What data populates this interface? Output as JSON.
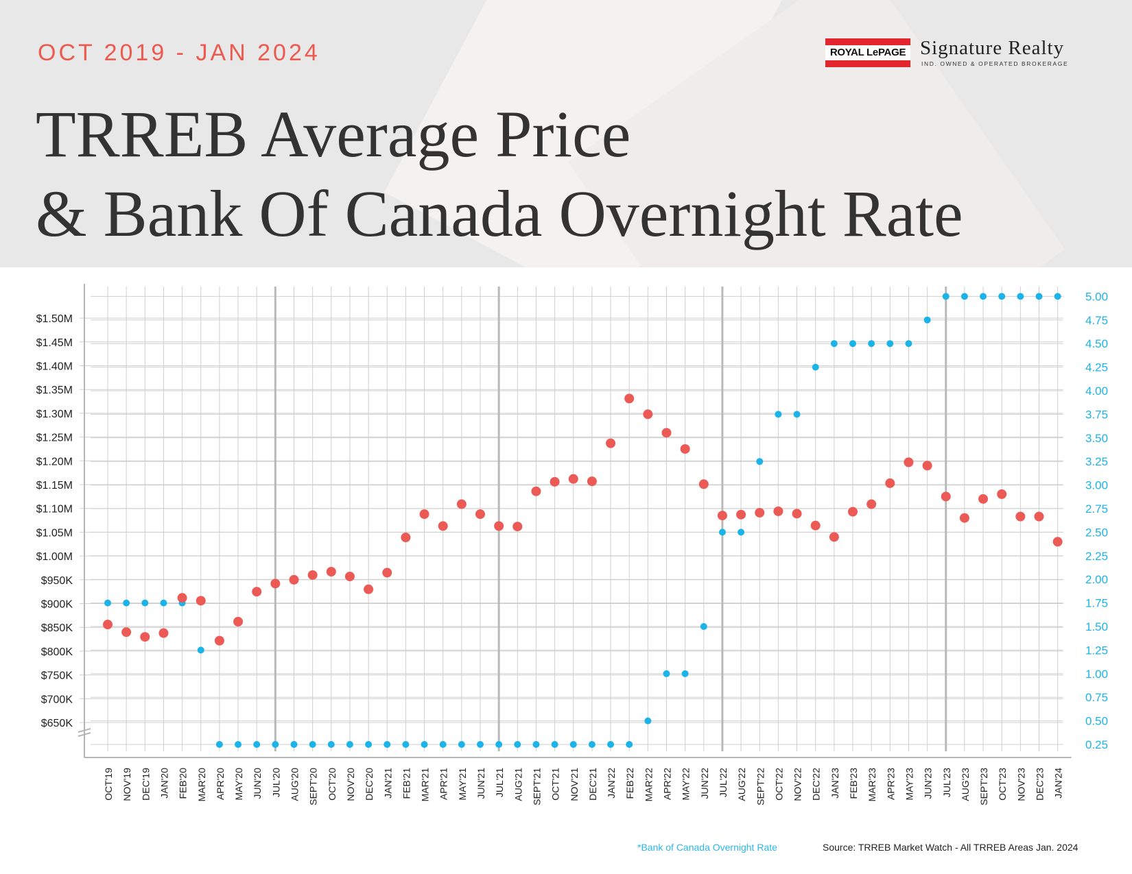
{
  "header": {
    "date_range": "OCT 2019 - JAN 2024",
    "title_line1": "TRREB Average Price",
    "title_line2": "& Bank Of Canada Overnight Rate"
  },
  "brand": {
    "royal_lepage": "ROYAL LePAGE",
    "name": "Signature Realty",
    "tagline": "IND. OWNED & OPERATED BROKERAGE",
    "red": "#e3262d"
  },
  "footer": {
    "note": "*Bank of Canada Overnight Rate",
    "source": "Source: TRREB Market Watch - All TRREB Areas Jan. 2024"
  },
  "colors": {
    "price": "#ec5a56",
    "rate": "#1cb4e8",
    "grid": "#cfcfcf",
    "accent_text": "#ec5a4f"
  },
  "chart_data": {
    "type": "scatter",
    "categories": [
      "OCT'19",
      "NOV'19",
      "DEC'19",
      "JAN'20",
      "FEB'20",
      "MAR'20",
      "APR'20",
      "MAY'20",
      "JUN'20",
      "JUL'20",
      "AUG'20",
      "SEPT'20",
      "OCT'20",
      "NOV'20",
      "DEC'20",
      "JAN'21",
      "FEB'21",
      "MAR'21",
      "APR'21",
      "MAY'21",
      "JUN'21",
      "JUL'21",
      "AUG'21",
      "SEPT'21",
      "OCT'21",
      "NOV'21",
      "DEC'21",
      "JAN'22",
      "FEB'22",
      "MAR'22",
      "APR'22",
      "MAY'22",
      "JUN'22",
      "JUL'22",
      "AUG'22",
      "SEPT'22",
      "OCT'22",
      "NOV'22",
      "DEC'22",
      "JAN'23",
      "FEB'23",
      "MAR'23",
      "APR'23",
      "MAY'23",
      "JUN'23",
      "JUL'23",
      "AUG'23",
      "SEPT'23",
      "OCT'23",
      "NOV'23",
      "DEC'23",
      "JAN'24"
    ],
    "left_axis": {
      "ticks": [
        650000,
        700000,
        750000,
        800000,
        850000,
        900000,
        950000,
        1000000,
        1050000,
        1100000,
        1150000,
        1200000,
        1250000,
        1300000,
        1350000,
        1400000,
        1450000,
        1500000
      ],
      "tick_labels": [
        "$650K",
        "$700K",
        "$750K",
        "$800K",
        "$850K",
        "$900K",
        "$950K",
        "$1.00M",
        "$1.05M",
        "$1.10M",
        "$1.15M",
        "$1.20M",
        "$1.25M",
        "$1.30M",
        "$1.35M",
        "$1.40M",
        "$1.45M",
        "$1.50M"
      ],
      "axis_break": true
    },
    "right_axis": {
      "ticks": [
        0.25,
        0.5,
        0.75,
        1.0,
        1.25,
        1.5,
        1.75,
        2.0,
        2.25,
        2.5,
        2.75,
        3.0,
        3.25,
        3.5,
        3.75,
        4.0,
        4.25,
        4.5,
        4.75,
        5.0
      ],
      "tick_labels": [
        "0.25",
        "0.50",
        "0.75",
        "1.00",
        "1.25",
        "1.50",
        "1.75",
        "2.00",
        "2.25",
        "2.50",
        "2.75",
        "3.00",
        "3.25",
        "3.50",
        "3.75",
        "4.00",
        "4.25",
        "4.50",
        "4.75",
        "5.00"
      ]
    },
    "series": [
      {
        "axis": "left",
        "values": [
          856000,
          840000,
          830000,
          838000,
          912000,
          906000,
          822000,
          862000,
          925000,
          942000,
          950000,
          960000,
          967000,
          957000,
          930000,
          965000,
          1039000,
          1088000,
          1063000,
          1109000,
          1088000,
          1063000,
          1062000,
          1136000,
          1156000,
          1162000,
          1157000,
          1237000,
          1331000,
          1298000,
          1259000,
          1225000,
          1151000,
          1085000,
          1087000,
          1091000,
          1094000,
          1089000,
          1064000,
          1040000,
          1093000,
          1109000,
          1153000,
          1197000,
          1190000,
          1125000,
          1080000,
          1120000,
          1130000,
          1083000,
          1083000,
          1030000
        ]
      },
      {
        "axis": "right",
        "values": [
          1.75,
          1.75,
          1.75,
          1.75,
          1.75,
          1.25,
          0.25,
          0.25,
          0.25,
          0.25,
          0.25,
          0.25,
          0.25,
          0.25,
          0.25,
          0.25,
          0.25,
          0.25,
          0.25,
          0.25,
          0.25,
          0.25,
          0.25,
          0.25,
          0.25,
          0.25,
          0.25,
          0.25,
          0.25,
          0.5,
          1.0,
          1.0,
          1.5,
          2.5,
          2.5,
          3.25,
          3.75,
          3.75,
          4.25,
          4.5,
          4.5,
          4.5,
          4.5,
          4.5,
          4.75,
          5.0,
          5.0,
          5.0,
          5.0,
          5.0,
          5.0,
          5.0
        ]
      }
    ],
    "year_dividers": [
      "JUL'20",
      "JUL'21",
      "JUL'22",
      "JUL'23"
    ],
    "grid": true
  }
}
